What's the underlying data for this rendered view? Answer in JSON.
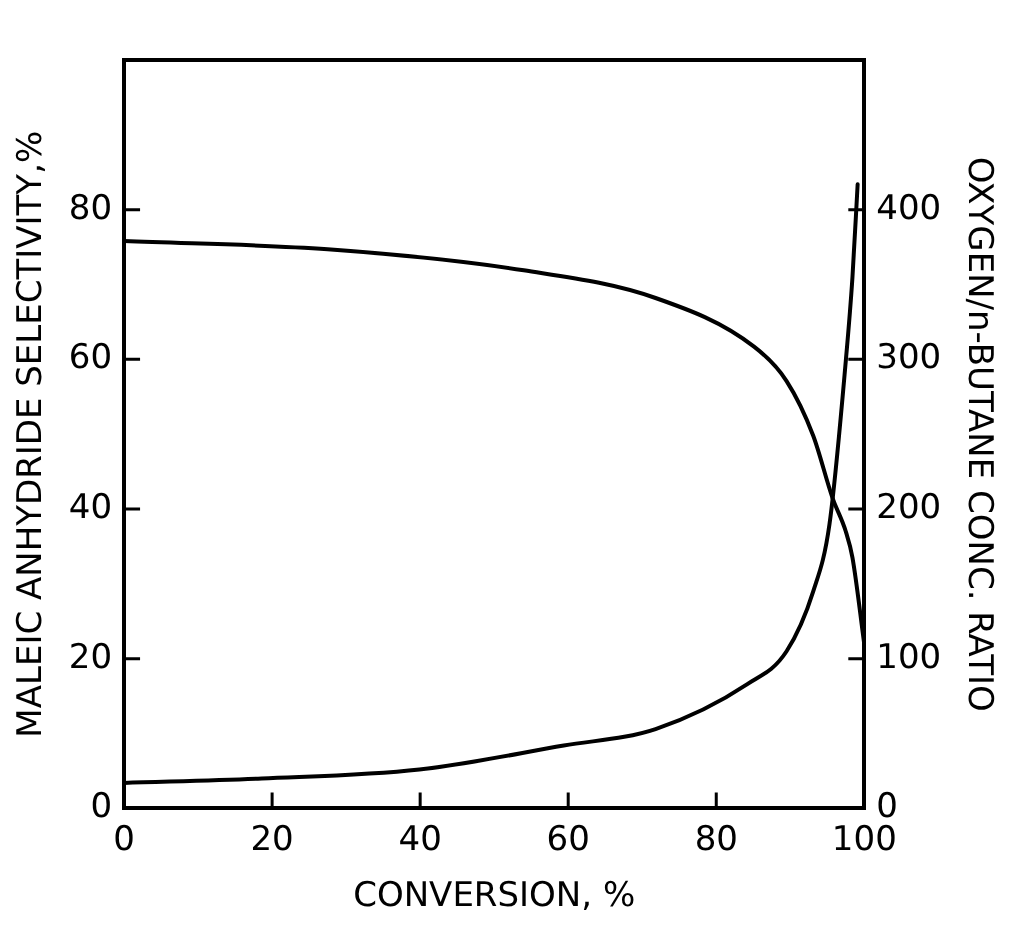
{
  "chart_data": {
    "type": "line",
    "xlabel": "CONVERSION, %",
    "ylabel": "MALEIC ANHYDRIDE SELECTIVITY,%",
    "y2label": "OXYGEN/n-BUTANE CONC. RATIO",
    "xlim": [
      0,
      100
    ],
    "xticks": [
      0,
      20,
      40,
      60,
      80,
      100
    ],
    "ylim": [
      0,
      100
    ],
    "yticks": [
      0,
      20,
      40,
      60,
      80
    ],
    "y2lim": [
      0,
      500
    ],
    "y2ticks": [
      0,
      100,
      200,
      300,
      400
    ],
    "grid": false,
    "legend": false,
    "marker": "none",
    "line_style": "solid",
    "series": [
      {
        "color": "#000000",
        "x": [
          0,
          27.5,
          54,
          71.8,
          85.1,
          89.5,
          93.1,
          95.7,
          97.5,
          98.4,
          100
        ],
        "values": [
          75.8,
          74.7,
          71.9,
          68.2,
          61.7,
          57.1,
          49.8,
          41.5,
          37,
          33.5,
          21.9
        ]
      },
      {
        "color": "#000000",
        "axis": "y2",
        "x": [
          0,
          18.6,
          39.9,
          59.4,
          71.8,
          84.2,
          89.5,
          93.1,
          95.3,
          97.5,
          98.4,
          99.1
        ],
        "values": [
          17,
          20,
          26,
          42,
          53,
          83,
          105,
          145,
          190,
          299,
          355,
          417
        ]
      }
    ]
  }
}
